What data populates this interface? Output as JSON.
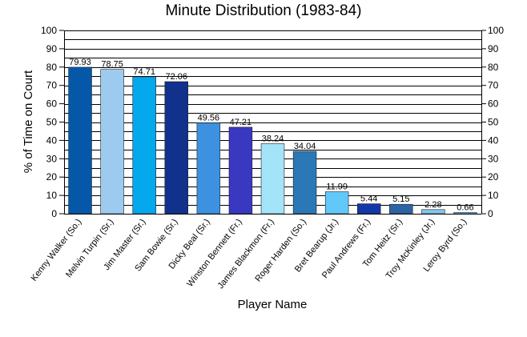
{
  "chart_data": {
    "type": "bar",
    "title": "Minute Distribution (1983-84)",
    "xlabel": "Player Name",
    "ylabel": "% of Time on Court",
    "ylim": [
      0,
      100
    ],
    "yticks": [
      0,
      10,
      20,
      30,
      40,
      50,
      60,
      70,
      80,
      90,
      100
    ],
    "grid": true,
    "right_axis": true,
    "categories": [
      "Kenny Walker (So.)",
      "Melvin Turpin (Sr.)",
      "Jim Master (Sr.)",
      "Sam Bowie (Sr.)",
      "Dicky Beal (Sr.)",
      "Winston Bennett (Fr.)",
      "James Blackmon (Fr.)",
      "Roger Harden (So.)",
      "Bret Bearup (Jr.)",
      "Paul Andrews (Fr.)",
      "Tom Heitz (Sr.)",
      "Troy McKinley (Jr.)",
      "Leroy Byrd (So.)"
    ],
    "values": [
      79.93,
      78.75,
      74.71,
      72.06,
      49.56,
      47.21,
      38.24,
      34.04,
      11.99,
      5.44,
      5.15,
      2.28,
      0.66
    ],
    "value_labels": [
      "79.93",
      "78.75",
      "74.71",
      "72.06",
      "49.56",
      "47.21",
      "38.24",
      "34.04",
      "11.99",
      "5.44",
      "5.15",
      "2.28",
      "0.66"
    ],
    "colors": [
      "#0558a8",
      "#9dcbf0",
      "#04a8ec",
      "#11318c",
      "#3c92e0",
      "#3838c0",
      "#a4e4f8",
      "#2a78b6",
      "#62c8fa",
      "#1238a8",
      "#2c64a4",
      "#82c4ec",
      "#60b8f0"
    ]
  }
}
